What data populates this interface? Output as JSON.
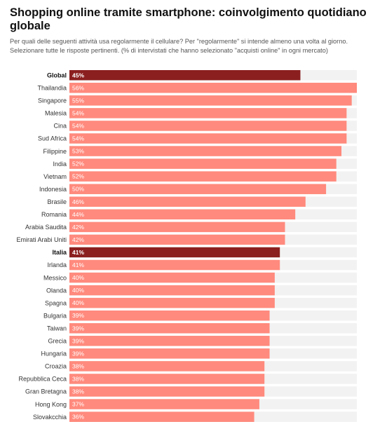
{
  "title": "Shopping online tramite smartphone: coinvolgimento quotidiano globale",
  "subtitle": "Per quali delle seguenti attività usa regolarmente il cellulare? Per \"regolarmente\" si intende almeno una volta al giorno. Selezionare tutte le risposte pertinenti. (% di intervistati che hanno selezionato \"acquisti online\" in ogni mercato)",
  "colors": {
    "bar": "#ff8a7d",
    "highlight": "#8b1f1f",
    "track": "#f2f2f2"
  },
  "chart_data": {
    "type": "bar",
    "orientation": "horizontal",
    "categories": [
      "Global",
      "Thailandia",
      "Singapore",
      "Malesia",
      "Cina",
      "Sud Africa",
      "Filippine",
      "India",
      "Vietnam",
      "Indonesia",
      "Brasile",
      "Romania",
      "Arabia Saudita",
      "Emirati Arabi Uniti",
      "Italia",
      "Irlanda",
      "Messico",
      "Olanda",
      "Spagna",
      "Bulgaria",
      "Taiwan",
      "Grecia",
      "Hungaria",
      "Croazia",
      "Repubblica Ceca",
      "Gran Bretagna",
      "Hong Kong",
      "Slovakcchia"
    ],
    "values": [
      45,
      56,
      55,
      54,
      54,
      54,
      53,
      52,
      52,
      50,
      46,
      44,
      42,
      42,
      41,
      41,
      40,
      40,
      40,
      39,
      39,
      39,
      39,
      38,
      38,
      38,
      37,
      36
    ],
    "value_labels": [
      "45%",
      "56%",
      "55%",
      "54%",
      "54%",
      "54%",
      "53%",
      "52%",
      "52%",
      "50%",
      "46%",
      "44%",
      "42%",
      "42%",
      "41%",
      "41%",
      "40%",
      "40%",
      "40%",
      "39%",
      "39%",
      "39%",
      "39%",
      "38%",
      "38%",
      "38%",
      "37%",
      "36%"
    ],
    "highlighted": [
      "Global",
      "Italia"
    ],
    "xlim": [
      0,
      56
    ],
    "grid": false,
    "legend": "none"
  }
}
